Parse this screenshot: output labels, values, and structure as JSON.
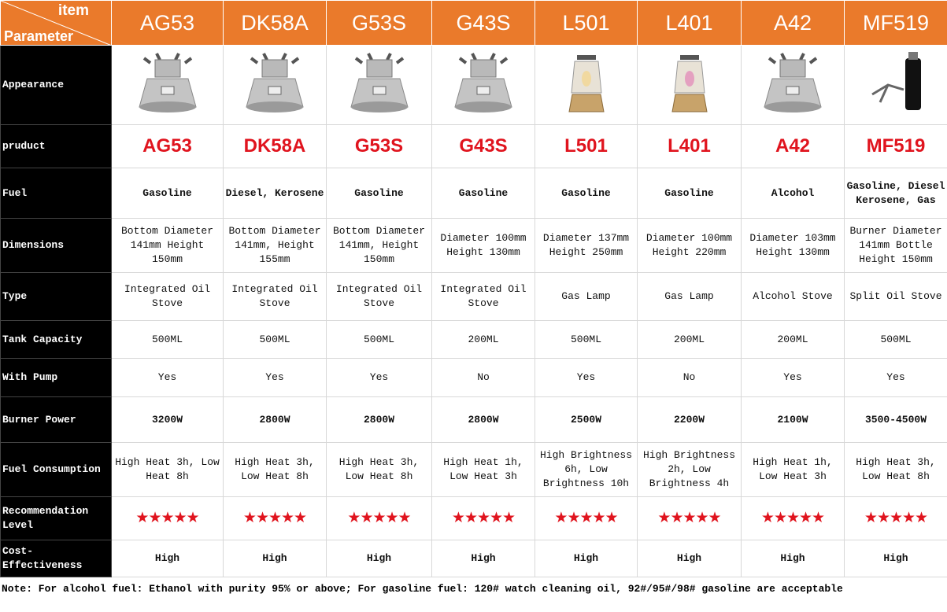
{
  "header": {
    "corner_top": "item",
    "corner_bottom": "Parameter",
    "columns": [
      "AG53",
      "DK58A",
      "G53S",
      "G43S",
      "L501",
      "L401",
      "A42",
      "MF519"
    ]
  },
  "rows": [
    {
      "label": "Appearance",
      "cells": []
    },
    {
      "label": "pruduct",
      "cells": [
        "AG53",
        "DK58A",
        "G53S",
        "G43S",
        "L501",
        "L401",
        "A42",
        "MF519"
      ]
    },
    {
      "label": "Fuel",
      "cells": [
        "Gasoline",
        "Diesel, Kerosene",
        "Gasoline",
        "Gasoline",
        "Gasoline",
        "Gasoline",
        "Alcohol",
        "Gasoline, Diesel Kerosene, Gas"
      ]
    },
    {
      "label": "Dimensions",
      "cells": [
        "Bottom Diameter 141mm Height 150mm",
        "Bottom Diameter 141mm, Height 155mm",
        "Bottom Diameter 141mm, Height 150mm",
        "Diameter 100mm Height 130mm",
        "Diameter 137mm Height 250mm",
        "Diameter 100mm Height 220mm",
        "Diameter 103mm Height 130mm",
        "Burner Diameter 141mm Bottle Height 150mm"
      ]
    },
    {
      "label": "Type",
      "cells": [
        "Integrated Oil Stove",
        "Integrated Oil Stove",
        "Integrated Oil Stove",
        "Integrated Oil Stove",
        "Gas Lamp",
        "Gas Lamp",
        "Alcohol Stove",
        "Split Oil Stove"
      ]
    },
    {
      "label": "Tank Capacity",
      "cells": [
        "500ML",
        "500ML",
        "500ML",
        "200ML",
        "500ML",
        "200ML",
        "200ML",
        "500ML"
      ]
    },
    {
      "label": "With Pump",
      "cells": [
        "Yes",
        "Yes",
        "Yes",
        "No",
        "Yes",
        "No",
        "Yes",
        "Yes"
      ]
    },
    {
      "label": "Burner Power",
      "cells": [
        "3200W",
        "2800W",
        "2800W",
        "2800W",
        "2500W",
        "2200W",
        "2100W",
        "3500-4500W"
      ]
    },
    {
      "label": "Fuel Consumption",
      "cells": [
        "High Heat 3h, Low Heat 8h",
        "High Heat 3h, Low Heat 8h",
        "High Heat 3h, Low Heat 8h",
        "High Heat 1h, Low Heat 3h",
        "High Brightness 6h, Low Brightness 10h",
        "High Brightness 2h, Low Brightness 4h",
        "High Heat 1h, Low Heat 3h",
        "High Heat 3h, Low Heat 8h"
      ]
    },
    {
      "label": "Recommendation Level",
      "cells": [
        "★★★★★",
        "★★★★★",
        "★★★★★",
        "★★★★★",
        "★★★★★",
        "★★★★★",
        "★★★★★",
        "★★★★★"
      ]
    },
    {
      "label": "Cost-Effectiveness",
      "cells": [
        "High",
        "High",
        "High",
        "High",
        "High",
        "High",
        "High",
        "High"
      ]
    }
  ],
  "note": "Note: For alcohol fuel: Ethanol with purity 95% or above; For gasoline fuel: 120# watch cleaning oil, 92#/95#/98# gasoline are acceptable"
}
